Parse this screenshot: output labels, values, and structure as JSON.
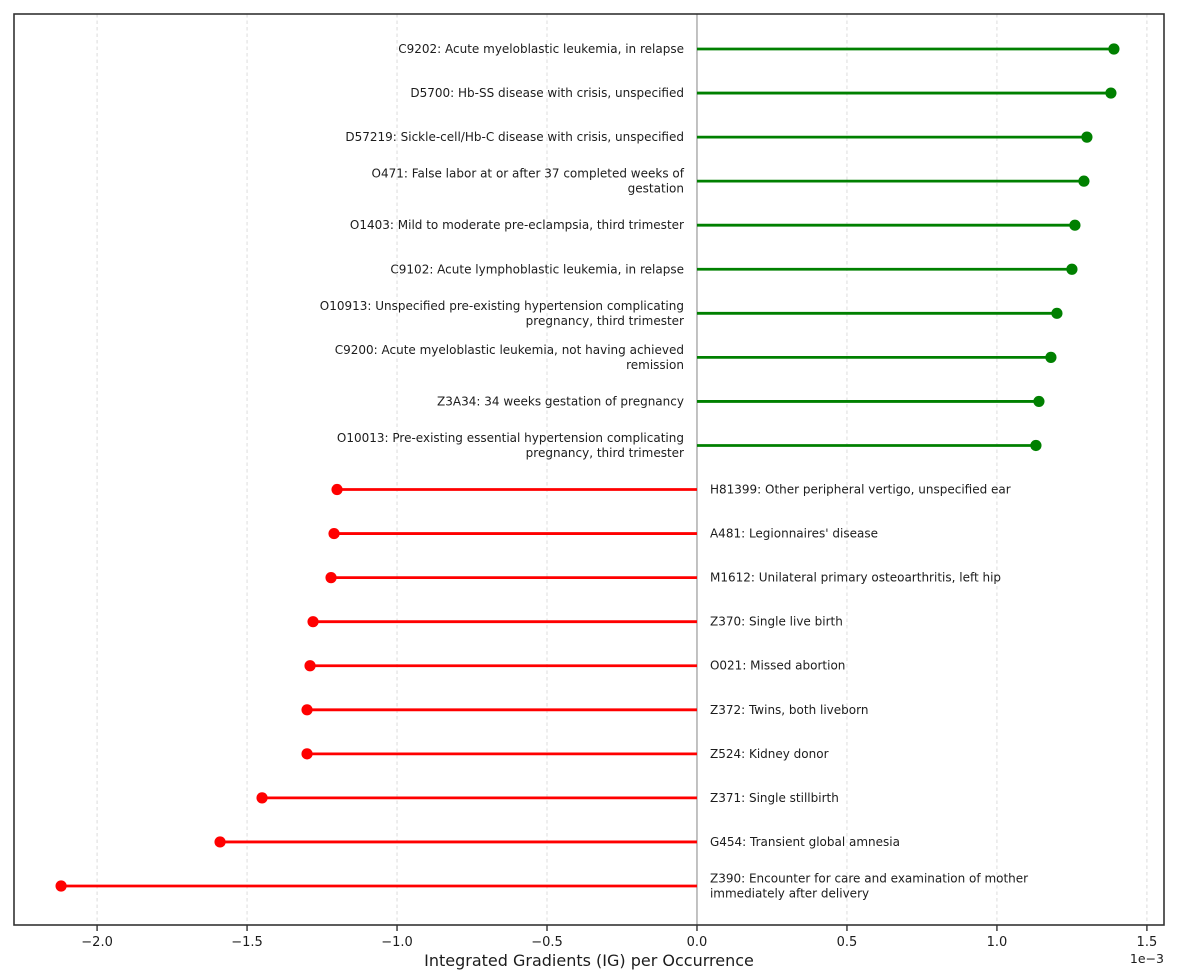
{
  "figure": {
    "background": "#ffffff",
    "positive_color": "#008000",
    "negative_color": "#ff0000",
    "zero_line_color": "#9a9a9a",
    "grid_color": "#dcdcdc",
    "spine_color": "#333333",
    "tick_color": "#333333",
    "text_color": "#1c1c1c"
  },
  "chart_data": {
    "type": "lollipop",
    "orientation": "horizontal",
    "xlabel": "Integrated Gradients (IG) per Occurrence",
    "scale_note": "1e−3",
    "value_unit": "1e-3",
    "xlim": [
      -2.277,
      1.557
    ],
    "xticks": [
      -2.0,
      -1.5,
      -1.0,
      -0.5,
      0.0,
      0.5,
      1.0,
      1.5
    ],
    "xtick_labels": [
      "−2.0",
      "−1.5",
      "−1.0",
      "−0.5",
      "0.0",
      "0.5",
      "1.0",
      "1.5"
    ],
    "grid": true,
    "zero_line": true,
    "items": [
      {
        "code": "C9202",
        "label": "C9202: Acute myeloblastic leukemia, in relapse",
        "lines": [
          "C9202: Acute myeloblastic leukemia, in relapse"
        ],
        "value_e3": 1.39
      },
      {
        "code": "D5700",
        "label": "D5700: Hb-SS disease with crisis, unspecified",
        "lines": [
          "D5700: Hb-SS disease with crisis, unspecified"
        ],
        "value_e3": 1.38
      },
      {
        "code": "D57219",
        "label": "D57219: Sickle-cell/Hb-C disease with crisis, unspecified",
        "lines": [
          "D57219: Sickle-cell/Hb-C disease with crisis, unspecified"
        ],
        "value_e3": 1.3
      },
      {
        "code": "O471",
        "label": "O471: False labor at or after 37 completed weeks of gestation",
        "lines": [
          "O471: False labor at or after 37 completed weeks of",
          "gestation"
        ],
        "value_e3": 1.29
      },
      {
        "code": "O1403",
        "label": "O1403: Mild to moderate pre-eclampsia, third trimester",
        "lines": [
          "O1403: Mild to moderate pre-eclampsia, third trimester"
        ],
        "value_e3": 1.26
      },
      {
        "code": "C9102",
        "label": "C9102: Acute lymphoblastic leukemia, in relapse",
        "lines": [
          "C9102: Acute lymphoblastic leukemia, in relapse"
        ],
        "value_e3": 1.25
      },
      {
        "code": "O10913",
        "label": "O10913: Unspecified pre-existing hypertension complicating pregnancy, third trimester",
        "lines": [
          "O10913: Unspecified pre-existing hypertension complicating",
          "pregnancy, third trimester"
        ],
        "value_e3": 1.2
      },
      {
        "code": "C9200",
        "label": "C9200: Acute myeloblastic leukemia, not having achieved remission",
        "lines": [
          "C9200: Acute myeloblastic leukemia, not having achieved",
          "remission"
        ],
        "value_e3": 1.18
      },
      {
        "code": "Z3A34",
        "label": "Z3A34: 34 weeks gestation of pregnancy",
        "lines": [
          "Z3A34: 34 weeks gestation of pregnancy"
        ],
        "value_e3": 1.14
      },
      {
        "code": "O10013",
        "label": "O10013: Pre-existing essential hypertension complicating pregnancy, third trimester",
        "lines": [
          "O10013: Pre-existing essential hypertension complicating",
          "pregnancy, third trimester"
        ],
        "value_e3": 1.13
      },
      {
        "code": "H81399",
        "label": "H81399: Other peripheral vertigo, unspecified ear",
        "lines": [
          "H81399: Other peripheral vertigo, unspecified ear"
        ],
        "value_e3": -1.2
      },
      {
        "code": "A481",
        "label": "A481: Legionnaires' disease",
        "lines": [
          "A481: Legionnaires' disease"
        ],
        "value_e3": -1.21
      },
      {
        "code": "M1612",
        "label": "M1612: Unilateral primary osteoarthritis, left hip",
        "lines": [
          "M1612: Unilateral primary osteoarthritis, left hip"
        ],
        "value_e3": -1.22
      },
      {
        "code": "Z370",
        "label": "Z370: Single live birth",
        "lines": [
          "Z370: Single live birth"
        ],
        "value_e3": -1.28
      },
      {
        "code": "O021",
        "label": "O021: Missed abortion",
        "lines": [
          "O021: Missed abortion"
        ],
        "value_e3": -1.29
      },
      {
        "code": "Z372",
        "label": "Z372: Twins, both liveborn",
        "lines": [
          "Z372: Twins, both liveborn"
        ],
        "value_e3": -1.3
      },
      {
        "code": "Z524",
        "label": "Z524: Kidney donor",
        "lines": [
          "Z524: Kidney donor"
        ],
        "value_e3": -1.3
      },
      {
        "code": "Z371",
        "label": "Z371: Single stillbirth",
        "lines": [
          "Z371: Single stillbirth"
        ],
        "value_e3": -1.45
      },
      {
        "code": "G454",
        "label": "G454: Transient global amnesia",
        "lines": [
          "G454: Transient global amnesia"
        ],
        "value_e3": -1.59
      },
      {
        "code": "Z390",
        "label": "Z390: Encounter for care and examination of mother immediately after delivery",
        "lines": [
          "Z390: Encounter for care and examination of mother",
          "immediately after delivery"
        ],
        "value_e3": -2.12
      }
    ]
  }
}
